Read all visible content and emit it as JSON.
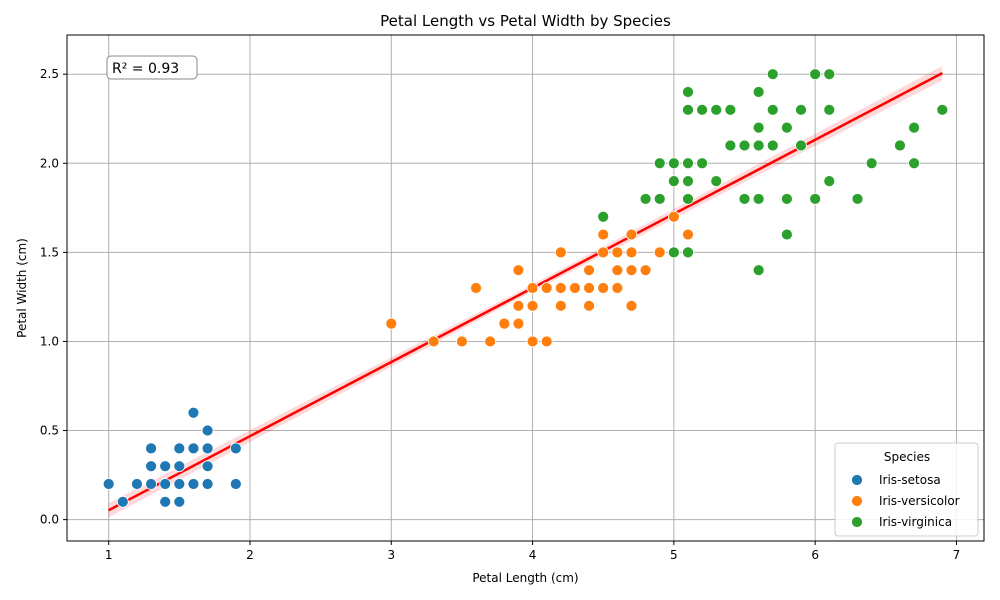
{
  "chart_data": {
    "type": "scatter",
    "title": "Petal Length vs Petal Width by Species",
    "xlabel": "Petal Length (cm)",
    "ylabel": "Petal Width (cm)",
    "xlim": [
      0.705,
      7.195
    ],
    "ylim": [
      -0.12,
      2.72
    ],
    "x_ticks": [
      1,
      2,
      3,
      4,
      5,
      6,
      7
    ],
    "y_ticks": [
      0.0,
      0.5,
      1.0,
      1.5,
      2.0,
      2.5
    ],
    "grid": true,
    "annotation": "R² = 0.93",
    "legend": {
      "title": "Species",
      "position": "lower-right"
    },
    "regression": {
      "color": "#ff0000",
      "band_color": "#ff0000",
      "x_range": [
        1.0,
        6.9
      ],
      "slope": 0.4158,
      "intercept": -0.3631,
      "band_halfwidth": [
        0.04,
        0.02,
        0.04
      ]
    },
    "series": [
      {
        "name": "Iris-setosa",
        "color": "#1f77b4",
        "points": [
          [
            1.0,
            0.2
          ],
          [
            1.1,
            0.1
          ],
          [
            1.2,
            0.2
          ],
          [
            1.3,
            0.2
          ],
          [
            1.3,
            0.3
          ],
          [
            1.3,
            0.4
          ],
          [
            1.4,
            0.1
          ],
          [
            1.4,
            0.2
          ],
          [
            1.4,
            0.3
          ],
          [
            1.5,
            0.1
          ],
          [
            1.5,
            0.2
          ],
          [
            1.5,
            0.3
          ],
          [
            1.5,
            0.4
          ],
          [
            1.6,
            0.2
          ],
          [
            1.6,
            0.4
          ],
          [
            1.6,
            0.6
          ],
          [
            1.7,
            0.2
          ],
          [
            1.7,
            0.3
          ],
          [
            1.7,
            0.4
          ],
          [
            1.7,
            0.5
          ],
          [
            1.9,
            0.2
          ],
          [
            1.9,
            0.4
          ]
        ]
      },
      {
        "name": "Iris-versicolor",
        "color": "#ff7f0e",
        "points": [
          [
            3.0,
            1.1
          ],
          [
            3.3,
            1.0
          ],
          [
            3.5,
            1.0
          ],
          [
            3.6,
            1.3
          ],
          [
            3.7,
            1.0
          ],
          [
            3.8,
            1.1
          ],
          [
            3.9,
            1.1
          ],
          [
            3.9,
            1.2
          ],
          [
            3.9,
            1.4
          ],
          [
            4.0,
            1.0
          ],
          [
            4.0,
            1.2
          ],
          [
            4.0,
            1.3
          ],
          [
            4.1,
            1.0
          ],
          [
            4.1,
            1.3
          ],
          [
            4.2,
            1.2
          ],
          [
            4.2,
            1.3
          ],
          [
            4.2,
            1.5
          ],
          [
            4.3,
            1.3
          ],
          [
            4.4,
            1.2
          ],
          [
            4.4,
            1.3
          ],
          [
            4.4,
            1.4
          ],
          [
            4.5,
            1.3
          ],
          [
            4.5,
            1.5
          ],
          [
            4.5,
            1.6
          ],
          [
            4.6,
            1.3
          ],
          [
            4.6,
            1.4
          ],
          [
            4.6,
            1.5
          ],
          [
            4.7,
            1.2
          ],
          [
            4.7,
            1.4
          ],
          [
            4.7,
            1.5
          ],
          [
            4.7,
            1.6
          ],
          [
            4.8,
            1.4
          ],
          [
            4.9,
            1.5
          ],
          [
            5.0,
            1.7
          ],
          [
            5.1,
            1.6
          ]
        ]
      },
      {
        "name": "Iris-virginica",
        "color": "#2ca02c",
        "points": [
          [
            4.5,
            1.7
          ],
          [
            4.8,
            1.8
          ],
          [
            4.9,
            1.8
          ],
          [
            4.9,
            2.0
          ],
          [
            5.0,
            1.5
          ],
          [
            5.0,
            1.9
          ],
          [
            5.0,
            2.0
          ],
          [
            5.1,
            1.5
          ],
          [
            5.1,
            1.8
          ],
          [
            5.1,
            1.9
          ],
          [
            5.1,
            2.0
          ],
          [
            5.1,
            2.3
          ],
          [
            5.1,
            2.4
          ],
          [
            5.2,
            2.0
          ],
          [
            5.2,
            2.3
          ],
          [
            5.3,
            1.9
          ],
          [
            5.3,
            2.3
          ],
          [
            5.4,
            2.1
          ],
          [
            5.4,
            2.3
          ],
          [
            5.5,
            1.8
          ],
          [
            5.5,
            2.1
          ],
          [
            5.6,
            1.4
          ],
          [
            5.6,
            1.8
          ],
          [
            5.6,
            2.1
          ],
          [
            5.6,
            2.2
          ],
          [
            5.6,
            2.4
          ],
          [
            5.7,
            2.1
          ],
          [
            5.7,
            2.3
          ],
          [
            5.7,
            2.5
          ],
          [
            5.8,
            1.6
          ],
          [
            5.8,
            1.8
          ],
          [
            5.8,
            2.2
          ],
          [
            5.9,
            2.1
          ],
          [
            5.9,
            2.3
          ],
          [
            6.0,
            1.8
          ],
          [
            6.0,
            2.5
          ],
          [
            6.1,
            1.9
          ],
          [
            6.1,
            2.3
          ],
          [
            6.1,
            2.5
          ],
          [
            6.3,
            1.8
          ],
          [
            6.4,
            2.0
          ],
          [
            6.6,
            2.1
          ],
          [
            6.7,
            2.0
          ],
          [
            6.7,
            2.2
          ],
          [
            6.9,
            2.3
          ]
        ]
      }
    ]
  }
}
